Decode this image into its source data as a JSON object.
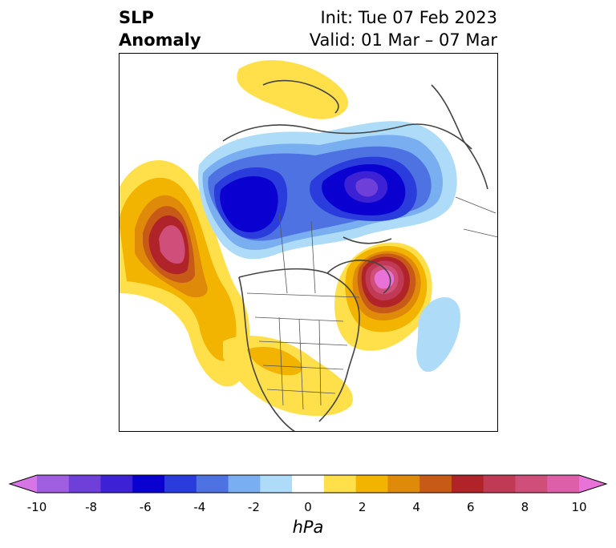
{
  "title": {
    "left_line1": "SLP",
    "left_line2": "Anomaly",
    "right_line1": "Init: Tue 07 Feb 2023",
    "right_line2": "Valid: 01 Mar – 07 Mar"
  },
  "colorbar": {
    "unit": "hPa",
    "min": -10,
    "max": 10,
    "step": 1,
    "tick_labels": [
      "-10",
      "-8",
      "-6",
      "-4",
      "-2",
      "0",
      "2",
      "4",
      "6",
      "8",
      "10"
    ],
    "colors": [
      "#d675e6",
      "#a05ee0",
      "#6e3fd9",
      "#3c22d4",
      "#0a00cf",
      "#2a3cdb",
      "#4f72e3",
      "#79aef0",
      "#aedcf8",
      "#ffffff",
      "#ffe04a",
      "#f2b400",
      "#e08a0a",
      "#c85a18",
      "#b02429",
      "#c03a55",
      "#cf4f7a",
      "#dc5fa8",
      "#e872d8"
    ]
  },
  "map": {
    "projection": "polar stereographic (North America / Arctic)",
    "features": [
      "coastlines",
      "country borders",
      "state/province borders"
    ]
  }
}
